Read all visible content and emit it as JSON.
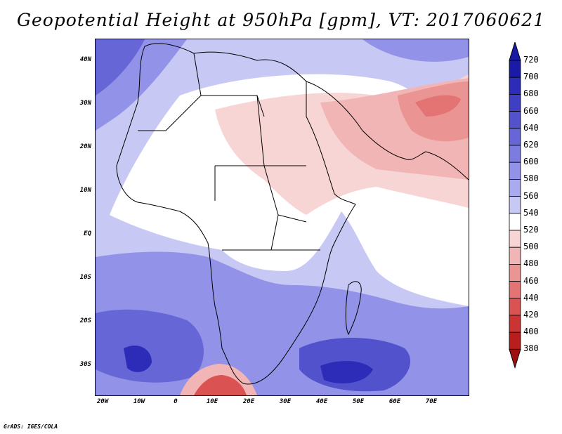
{
  "title": "Geopotential Height at 950hPa [gpm], VT: 2017060621",
  "credit": "GrADS: IGES/COLA",
  "y_labels": [
    "40N",
    "30N",
    "20N",
    "10N",
    "EQ",
    "10S",
    "20S",
    "30S"
  ],
  "x_labels": [
    "20W",
    "10W",
    "0",
    "10E",
    "20E",
    "30E",
    "40E",
    "50E",
    "60E",
    "70E"
  ],
  "colorbar": {
    "levels": [
      "720",
      "700",
      "680",
      "660",
      "640",
      "620",
      "600",
      "580",
      "560",
      "540",
      "520",
      "500",
      "480",
      "460",
      "440",
      "420",
      "400",
      "380"
    ],
    "colors": [
      "#1a1aa8",
      "#2c2cb8",
      "#3f3fc4",
      "#5252cc",
      "#6666d6",
      "#7b7be0",
      "#9292e8",
      "#aaaaef",
      "#c8c8f5",
      "#ffffff",
      "#f7d5d5",
      "#f2b5b5",
      "#eb9494",
      "#e47373",
      "#db5252",
      "#cc3434",
      "#b81e1e",
      "#9e1010"
    ]
  },
  "map_colors": {
    "blue_light": "#c8c8f5",
    "blue_mid": "#9292e8",
    "blue_dark": "#6666d6",
    "blue_deep": "#3f3fc4",
    "red_light": "#f7d5d5",
    "red_mid": "#f2b5b5",
    "red_dark": "#e47373",
    "red_deep": "#b81e1e"
  }
}
